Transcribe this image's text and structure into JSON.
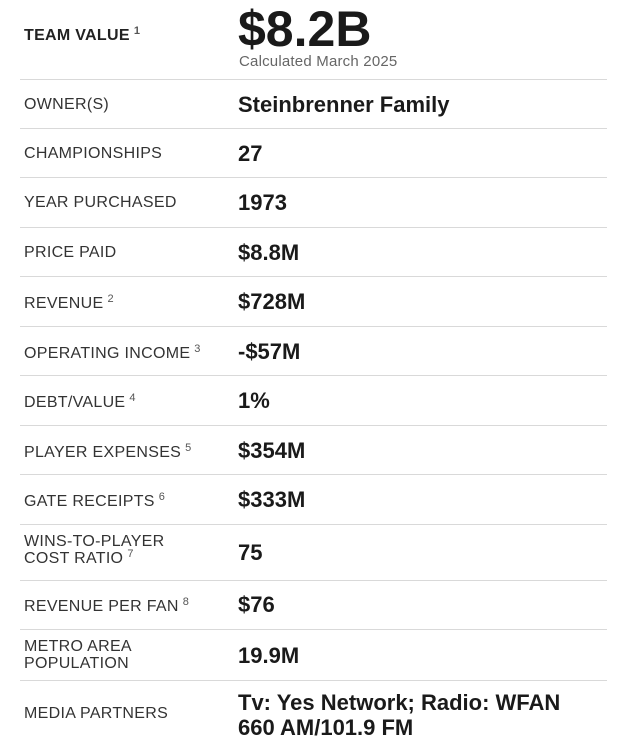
{
  "team_value": {
    "label": "TEAM VALUE",
    "footnote": "1",
    "value": "$8.2B",
    "note": "Calculated March 2025"
  },
  "rows": [
    {
      "label": "OWNER(S)",
      "footnote": "",
      "value": "Steinbrenner Family"
    },
    {
      "label": "CHAMPIONSHIPS",
      "footnote": "",
      "value": "27"
    },
    {
      "label": "YEAR PURCHASED",
      "footnote": "",
      "value": "1973"
    },
    {
      "label": "PRICE PAID",
      "footnote": "",
      "value": "$8.8M"
    },
    {
      "label": "REVENUE",
      "footnote": "2",
      "value": "$728M"
    },
    {
      "label": "OPERATING INCOME",
      "footnote": "3",
      "value": "-$57M"
    },
    {
      "label": "DEBT/VALUE",
      "footnote": "4",
      "value": "1%"
    },
    {
      "label": "PLAYER EXPENSES",
      "footnote": "5",
      "value": "$354M"
    },
    {
      "label": "GATE RECEIPTS",
      "footnote": "6",
      "value": "$333M"
    },
    {
      "label": "WINS-TO-PLAYER COST RATIO",
      "footnote": "7",
      "value": "75"
    },
    {
      "label": "REVENUE PER FAN",
      "footnote": "8",
      "value": "$76"
    },
    {
      "label": "METRO AREA POPULATION",
      "footnote": "",
      "value": "19.9M"
    },
    {
      "label": "MEDIA PARTNERS",
      "footnote": "",
      "value": "Tv: Yes Network; Radio: WFAN 660 AM/101.9 FM"
    }
  ]
}
